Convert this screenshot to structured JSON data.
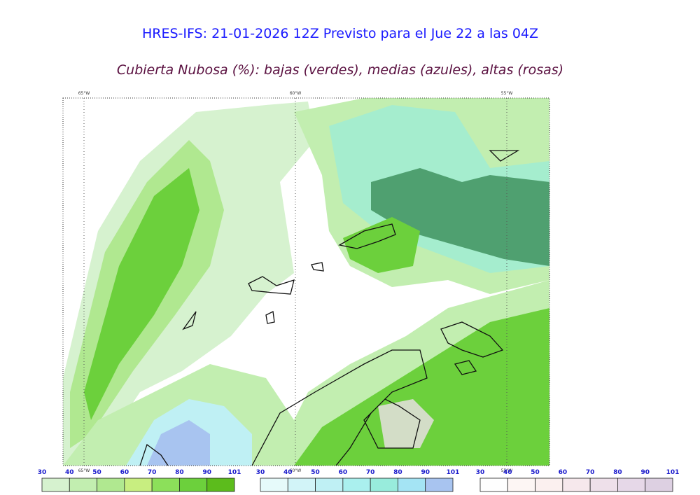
{
  "header": {
    "title": "HRES-IFS: 21-01-2026 12Z Previsto para el Jue 22 a las 04Z",
    "subtitle": "Cubierta Nubosa (%): bajas (verdes), medias (azules), altas (rosas)"
  },
  "map": {
    "longitude_labels": [
      "65°W",
      "60°W",
      "55°W"
    ]
  },
  "legends": [
    {
      "ticks": [
        30,
        40,
        50,
        60,
        70,
        80,
        90,
        101
      ],
      "colors": [
        "#d6f2cf",
        "#c2eeb0",
        "#b0e890",
        "#c8ee80",
        "#8ce05a",
        "#6cd03c",
        "#5cbc1c"
      ]
    },
    {
      "ticks": [
        30,
        40,
        50,
        60,
        70,
        80,
        90,
        101
      ],
      "colors": [
        "#e6fafa",
        "#d2f4f8",
        "#bff0f4",
        "#aaf0ee",
        "#98ecdc",
        "#a4e4f4",
        "#a8c4f0"
      ]
    },
    {
      "ticks": [
        30,
        40,
        50,
        60,
        70,
        80,
        90,
        101
      ],
      "colors": [
        "#fefefe",
        "#fdf6f4",
        "#fbf0ef",
        "#f6e8ec",
        "#eee0ea",
        "#e6d8e8",
        "#ddd0e2"
      ]
    }
  ]
}
